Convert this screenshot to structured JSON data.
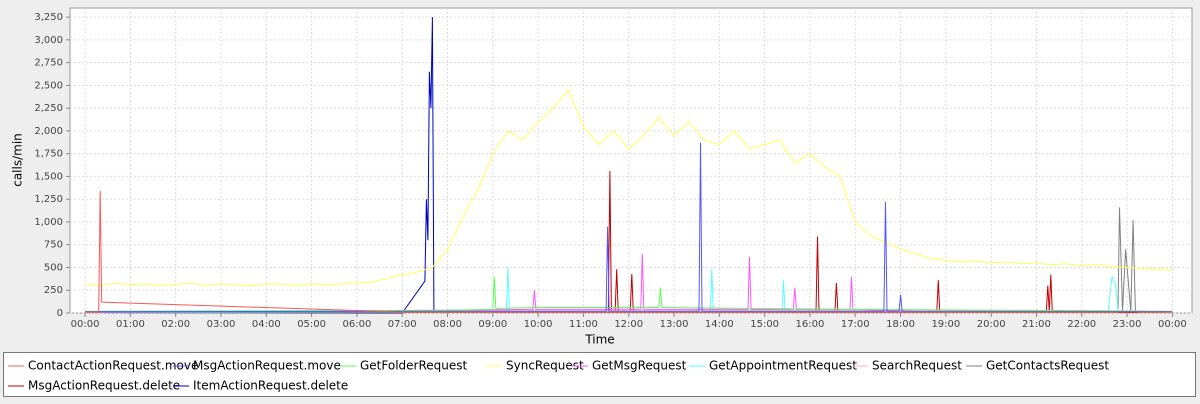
{
  "chart_data": {
    "type": "line",
    "x_label": "Time",
    "y_label": "calls/min",
    "xlim": [
      -20,
      1466
    ],
    "ylim": [
      0,
      3350
    ],
    "xticks": [
      {
        "value": 0,
        "label": "00:00"
      },
      {
        "value": 60,
        "label": "01:00"
      },
      {
        "value": 120,
        "label": "02:00"
      },
      {
        "value": 180,
        "label": "03:00"
      },
      {
        "value": 240,
        "label": "04:00"
      },
      {
        "value": 300,
        "label": "05:00"
      },
      {
        "value": 360,
        "label": "06:00"
      },
      {
        "value": 420,
        "label": "07:00"
      },
      {
        "value": 480,
        "label": "08:00"
      },
      {
        "value": 540,
        "label": "09:00"
      },
      {
        "value": 600,
        "label": "10:00"
      },
      {
        "value": 660,
        "label": "11:00"
      },
      {
        "value": 720,
        "label": "12:00"
      },
      {
        "value": 780,
        "label": "13:00"
      },
      {
        "value": 840,
        "label": "14:00"
      },
      {
        "value": 900,
        "label": "15:00"
      },
      {
        "value": 960,
        "label": "16:00"
      },
      {
        "value": 1020,
        "label": "17:00"
      },
      {
        "value": 1080,
        "label": "18:00"
      },
      {
        "value": 1140,
        "label": "19:00"
      },
      {
        "value": 1200,
        "label": "20:00"
      },
      {
        "value": 1260,
        "label": "21:00"
      },
      {
        "value": 1320,
        "label": "22:00"
      },
      {
        "value": 1380,
        "label": "23:00"
      },
      {
        "value": 1440,
        "label": "00:00"
      }
    ],
    "yticks": [
      0,
      250,
      500,
      750,
      {
        "value": 1000,
        "label": "1,000"
      },
      {
        "value": 1250,
        "label": "1,250"
      },
      {
        "value": 1500,
        "label": "1,500"
      },
      {
        "value": 1750,
        "label": "1,750"
      },
      {
        "value": 2000,
        "label": "2,000"
      },
      {
        "value": 2250,
        "label": "2,250"
      },
      {
        "value": 2500,
        "label": "2,500"
      },
      {
        "value": 2750,
        "label": "2,750"
      },
      {
        "value": 3000,
        "label": "3,000"
      },
      {
        "value": 3250,
        "label": "3,250"
      }
    ],
    "grid": true,
    "series": [
      {
        "name": "ContactActionRequest.move",
        "color": "#ff5555",
        "x": [
          0,
          18,
          20,
          22,
          420,
          1440
        ],
        "values": [
          10,
          10,
          1340,
          120,
          10,
          10
        ]
      },
      {
        "name": "MsgActionRequest.move",
        "color": "#5555ff",
        "x": [
          0,
          690,
          692,
          694,
          813,
          815,
          817,
          1058,
          1060,
          1062,
          1078,
          1080,
          1082,
          1440
        ],
        "values": [
          15,
          20,
          950,
          20,
          20,
          1870,
          20,
          20,
          1220,
          20,
          20,
          200,
          20,
          15
        ]
      },
      {
        "name": "GetFolderRequest",
        "color": "#55ff55",
        "x": [
          0,
          480,
          540,
          542,
          544,
          600,
          760,
          762,
          764,
          1020,
          1440
        ],
        "values": [
          20,
          30,
          40,
          400,
          50,
          60,
          60,
          280,
          60,
          40,
          20
        ]
      },
      {
        "name": "SyncRequest",
        "color": "#ffff55",
        "x": [
          0,
          20,
          40,
          60,
          80,
          100,
          120,
          140,
          160,
          180,
          200,
          220,
          240,
          260,
          280,
          300,
          320,
          340,
          360,
          380,
          400,
          420,
          440,
          460,
          480,
          500,
          520,
          540,
          560,
          580,
          600,
          620,
          640,
          660,
          680,
          700,
          720,
          740,
          760,
          780,
          800,
          820,
          840,
          860,
          880,
          900,
          920,
          940,
          960,
          980,
          1000,
          1020,
          1040,
          1060,
          1080,
          1100,
          1120,
          1140,
          1160,
          1180,
          1200,
          1220,
          1240,
          1260,
          1280,
          1300,
          1320,
          1340,
          1360,
          1380,
          1400,
          1420,
          1440
        ],
        "values": [
          320,
          300,
          330,
          310,
          320,
          300,
          315,
          325,
          305,
          320,
          310,
          300,
          320,
          315,
          305,
          320,
          310,
          320,
          330,
          340,
          380,
          420,
          450,
          500,
          700,
          1050,
          1350,
          1750,
          2000,
          1900,
          2100,
          2250,
          2450,
          2050,
          1850,
          2000,
          1800,
          1950,
          2150,
          1950,
          2100,
          1900,
          1850,
          2000,
          1800,
          1850,
          1900,
          1650,
          1750,
          1600,
          1500,
          1000,
          850,
          780,
          700,
          650,
          600,
          580,
          560,
          570,
          550,
          560,
          540,
          550,
          530,
          540,
          520,
          530,
          510,
          500,
          490,
          480,
          470
        ]
      },
      {
        "name": "GetMsgRequest",
        "color": "#ff55ff",
        "x": [
          0,
          480,
          593,
          595,
          597,
          736,
          738,
          740,
          878,
          880,
          882,
          938,
          940,
          942,
          1013,
          1015,
          1017,
          1100,
          1440
        ],
        "values": [
          10,
          30,
          40,
          250,
          40,
          40,
          650,
          40,
          40,
          620,
          40,
          40,
          280,
          40,
          40,
          400,
          40,
          20,
          10
        ]
      },
      {
        "name": "GetAppointmentRequest",
        "color": "#55ffff",
        "x": [
          0,
          558,
          560,
          562,
          828,
          830,
          832,
          923,
          925,
          927,
          1355,
          1360,
          1365,
          1368,
          1440
        ],
        "values": [
          10,
          20,
          500,
          20,
          20,
          480,
          20,
          20,
          360,
          20,
          20,
          400,
          300,
          20,
          10
        ]
      },
      {
        "name": "SearchRequest",
        "color": "#ffafaf",
        "x": [
          0,
          480,
          1020,
          1440
        ],
        "values": [
          10,
          25,
          25,
          10
        ]
      },
      {
        "name": "GetContactsRequest",
        "color": "#808080",
        "x": [
          0,
          1368,
          1370,
          1374,
          1378,
          1385,
          1388,
          1391,
          1395,
          1440
        ],
        "values": [
          5,
          5,
          1160,
          20,
          700,
          20,
          1020,
          20,
          5,
          5
        ]
      },
      {
        "name": "MsgActionRequest.delete",
        "color": "#c00000",
        "x": [
          0,
          693,
          695,
          697,
          702,
          704,
          706,
          722,
          724,
          726,
          968,
          970,
          972,
          993,
          995,
          997,
          1128,
          1130,
          1132,
          1273,
          1275,
          1277,
          1279,
          1281,
          1440
        ],
        "values": [
          5,
          10,
          1560,
          10,
          10,
          480,
          10,
          10,
          430,
          10,
          10,
          840,
          10,
          10,
          330,
          10,
          10,
          360,
          10,
          10,
          300,
          10,
          420,
          10,
          5
        ]
      },
      {
        "name": "ItemActionRequest.delete",
        "color": "#0000c0",
        "x": [
          0,
          420,
          450,
          452,
          454,
          456,
          458,
          460,
          462,
          464,
          1440
        ],
        "values": [
          5,
          0,
          350,
          1250,
          800,
          2650,
          2250,
          3250,
          20,
          5,
          5
        ]
      }
    ]
  }
}
